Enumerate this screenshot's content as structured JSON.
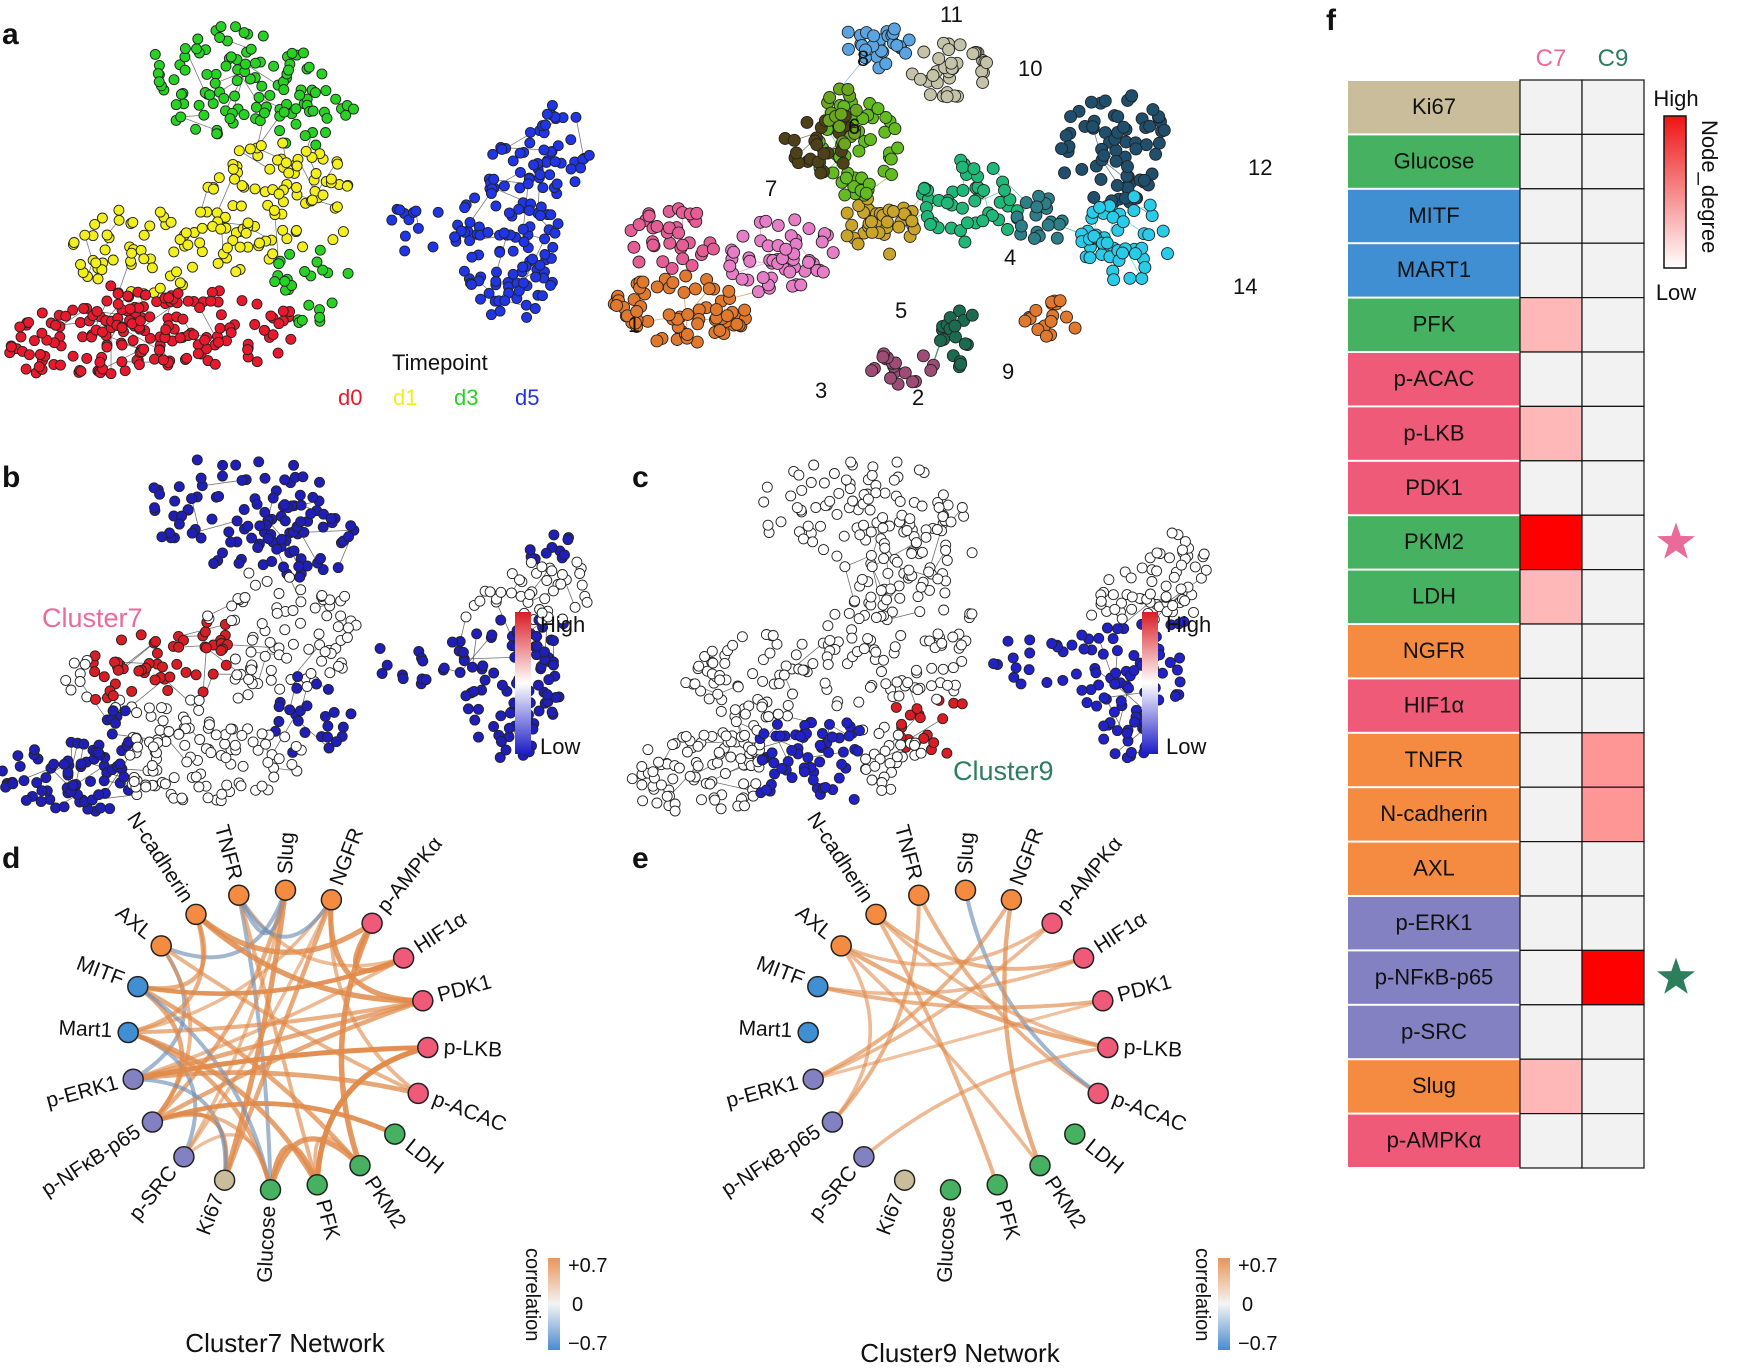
{
  "panels": {
    "a": "a",
    "b": "b",
    "c": "c",
    "d": "d",
    "e": "e",
    "f": "f"
  },
  "panel_a": {
    "legend_title": "Timepoint",
    "timepoints": [
      {
        "label": "d0",
        "color": "#e8192c"
      },
      {
        "label": "d1",
        "color": "#f2ef1a"
      },
      {
        "label": "d3",
        "color": "#27d223"
      },
      {
        "label": "d5",
        "color": "#1f35e6"
      }
    ],
    "cluster_numbers": [
      "1",
      "2",
      "3",
      "4",
      "5",
      "6",
      "7",
      "8",
      "9",
      "10",
      "11",
      "12",
      "14"
    ]
  },
  "panel_b": {
    "cluster_label": "Cluster7",
    "high": "High",
    "low": "Low"
  },
  "panel_c": {
    "cluster_label": "Cluster9",
    "high": "High",
    "low": "Low"
  },
  "networks": {
    "nodes": [
      {
        "name": "Slug",
        "color": "#f58b40"
      },
      {
        "name": "NGFR",
        "color": "#f58b40"
      },
      {
        "name": "p-AMPKα",
        "color": "#ef5a78"
      },
      {
        "name": "HIF1α",
        "color": "#ef5a78"
      },
      {
        "name": "PDK1",
        "color": "#ef5a78"
      },
      {
        "name": "p-LKB",
        "color": "#ef5a78"
      },
      {
        "name": "p-ACAC",
        "color": "#ef5a78"
      },
      {
        "name": "LDH",
        "color": "#46b160"
      },
      {
        "name": "PKM2",
        "color": "#46b160"
      },
      {
        "name": "PFK",
        "color": "#46b160"
      },
      {
        "name": "Glucose",
        "color": "#46b160"
      },
      {
        "name": "Ki67",
        "color": "#c9bd9b"
      },
      {
        "name": "p-SRC",
        "color": "#8381c1"
      },
      {
        "name": "p-NFκB-p65",
        "color": "#8381c1"
      },
      {
        "name": "p-ERK1",
        "color": "#8381c1"
      },
      {
        "name": "Mart1",
        "color": "#3f8fd2"
      },
      {
        "name": "MITF",
        "color": "#3f8fd2"
      },
      {
        "name": "AXL",
        "color": "#f58b40"
      },
      {
        "name": "N-cadherin",
        "color": "#f58b40"
      },
      {
        "name": "TNFR",
        "color": "#f58b40"
      }
    ],
    "legend": {
      "title": "correlation",
      "max": "+0.7",
      "mid": "0",
      "min": "−0.7"
    },
    "cluster7_title": "Cluster7 Network",
    "cluster9_title": "Cluster9 Network"
  },
  "panel_f": {
    "columns": [
      "C7",
      "C9"
    ],
    "column_colors": [
      "#ea6a9a",
      "#2e7d5b"
    ],
    "legend_title": "Node_degree",
    "legend_high": "High",
    "legend_low": "Low",
    "rows": [
      {
        "label": "Ki67",
        "color": "#c9bd9b",
        "c7": 0,
        "c9": 0
      },
      {
        "label": "Glucose",
        "color": "#46b160",
        "c7": 0,
        "c9": 0
      },
      {
        "label": "MITF",
        "color": "#3f8fd2",
        "c7": 0,
        "c9": 0
      },
      {
        "label": "MART1",
        "color": "#3f8fd2",
        "c7": 0,
        "c9": 0
      },
      {
        "label": "PFK",
        "color": "#46b160",
        "c7": 0.2,
        "c9": 0
      },
      {
        "label": "p-ACAC",
        "color": "#ef5a78",
        "c7": 0,
        "c9": 0
      },
      {
        "label": "p-LKB",
        "color": "#ef5a78",
        "c7": 0.2,
        "c9": 0
      },
      {
        "label": "PDK1",
        "color": "#ef5a78",
        "c7": 0,
        "c9": 0
      },
      {
        "label": "PKM2",
        "color": "#46b160",
        "c7": 1.0,
        "c9": 0
      },
      {
        "label": "LDH",
        "color": "#46b160",
        "c7": 0.2,
        "c9": 0
      },
      {
        "label": "NGFR",
        "color": "#f58b40",
        "c7": 0,
        "c9": 0
      },
      {
        "label": "HIF1α",
        "color": "#ef5a78",
        "c7": 0,
        "c9": 0
      },
      {
        "label": "TNFR",
        "color": "#f58b40",
        "c7": 0,
        "c9": 0.35
      },
      {
        "label": "N-cadherin",
        "color": "#f58b40",
        "c7": 0,
        "c9": 0.35
      },
      {
        "label": "AXL",
        "color": "#f58b40",
        "c7": 0,
        "c9": 0
      },
      {
        "label": "p-ERK1",
        "color": "#8381c1",
        "c7": 0,
        "c9": 0
      },
      {
        "label": "p-NFκB-p65",
        "color": "#8381c1",
        "c7": 0,
        "c9": 1.0
      },
      {
        "label": "p-SRC",
        "color": "#8381c1",
        "c7": 0,
        "c9": 0
      },
      {
        "label": "Slug",
        "color": "#f58b40",
        "c7": 0.2,
        "c9": 0
      },
      {
        "label": "p-AMPKα",
        "color": "#ef5a78",
        "c7": 0,
        "c9": 0
      }
    ],
    "star_rows": [
      {
        "row": "PKM2",
        "color": "#ea6a9a"
      },
      {
        "row": "p-NFκB-p65",
        "color": "#2e7d5b"
      }
    ]
  }
}
